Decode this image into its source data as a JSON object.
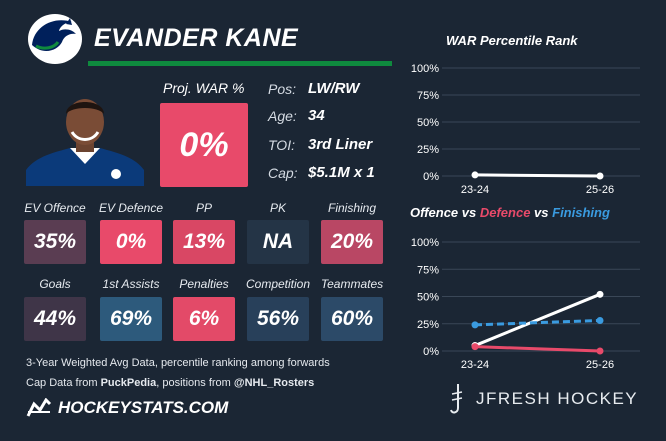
{
  "player": {
    "name": "EVANDER KANE",
    "proj_war_label": "Proj. WAR %",
    "proj_war_value": "0%",
    "info": [
      {
        "label": "Pos:",
        "value": "LW/RW"
      },
      {
        "label": "Age:",
        "value": "34"
      },
      {
        "label": "TOI:",
        "value": "3rd Liner"
      },
      {
        "label": "Cap:",
        "value": "$5.1M x 1"
      }
    ]
  },
  "stats": [
    {
      "label": "EV Offence",
      "value": "35%",
      "color": "#5a3d52"
    },
    {
      "label": "EV Defence",
      "value": "0%",
      "color": "#e84a6a"
    },
    {
      "label": "PP",
      "value": "13%",
      "color": "#d94764"
    },
    {
      "label": "PK",
      "value": "NA",
      "color": "#243446"
    },
    {
      "label": "Finishing",
      "value": "20%",
      "color": "#b94764"
    },
    {
      "label": "Goals",
      "value": "44%",
      "color": "#3f3548"
    },
    {
      "label": "1st Assists",
      "value": "69%",
      "color": "#2d5a7c"
    },
    {
      "label": "Penalties",
      "value": "6%",
      "color": "#e34a68"
    },
    {
      "label": "Competition",
      "value": "56%",
      "color": "#28405a"
    },
    {
      "label": "Teammates",
      "value": "60%",
      "color": "#2c4a68"
    }
  ],
  "footer": {
    "line1": "3-Year Weighted Avg Data, percentile ranking among forwards",
    "line2_prefix": "Cap Data from ",
    "line2_source1": "PuckPedia",
    "line2_middle": ", positions from ",
    "line2_source2": "@NHL_Rosters",
    "brand": "HOCKEYSTATS.COM",
    "jfresh": "JFRESH HOCKEY"
  },
  "chart_titles": {
    "war": "WAR Percentile Rank",
    "offence": "Offence",
    "vs1": " vs ",
    "defence": "Defence",
    "vs2": " vs ",
    "finishing": "Finishing"
  },
  "chart_data": [
    {
      "type": "line",
      "title": "WAR Percentile Rank",
      "x": [
        "23-24",
        "25-26"
      ],
      "yticks": [
        "0%",
        "25%",
        "50%",
        "75%",
        "100%"
      ],
      "ylim": [
        0,
        100
      ],
      "grid": true,
      "series": [
        {
          "values": [
            1,
            0
          ],
          "color": "#ffffff",
          "dash": false
        }
      ]
    },
    {
      "type": "line",
      "title": "Offence vs Defence vs Finishing",
      "x": [
        "23-24",
        "25-26"
      ],
      "yticks": [
        "0%",
        "25%",
        "50%",
        "75%",
        "100%"
      ],
      "ylim": [
        0,
        100
      ],
      "grid": true,
      "series": [
        {
          "name": "Offence",
          "values": [
            5,
            52
          ],
          "color": "#ffffff",
          "dash": false
        },
        {
          "name": "Defence",
          "values": [
            4,
            0
          ],
          "color": "#e84a6a",
          "dash": false
        },
        {
          "name": "Finishing",
          "values": [
            24,
            28
          ],
          "color": "#3a9be0",
          "dash": true
        }
      ]
    }
  ]
}
